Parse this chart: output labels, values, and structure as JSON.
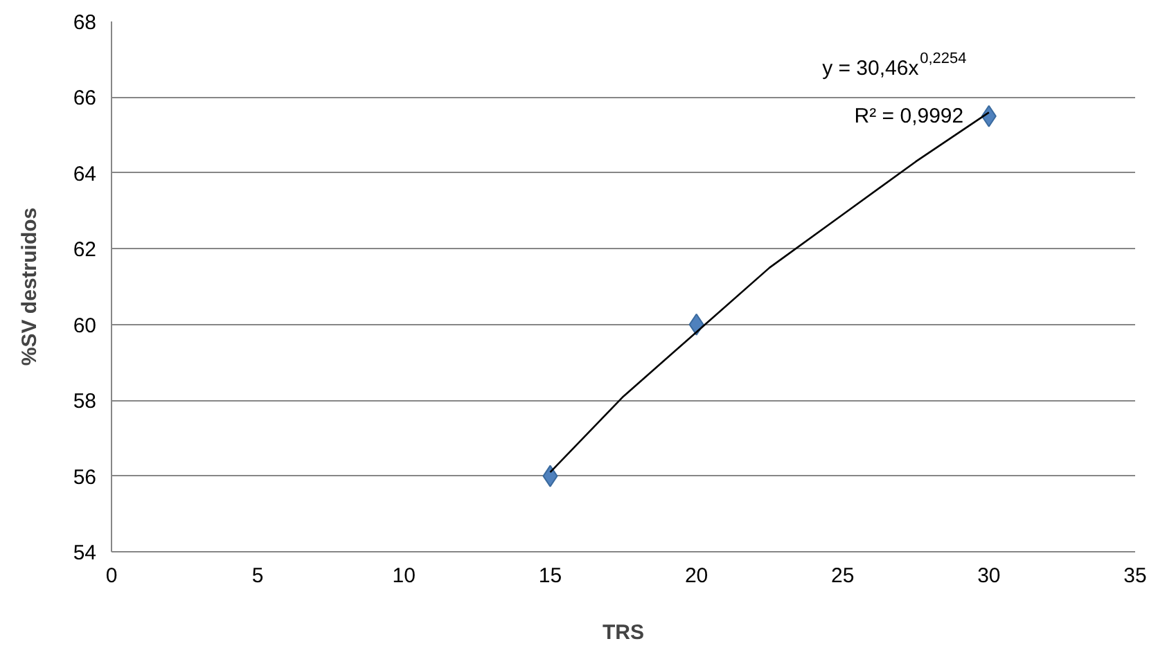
{
  "chart_data": {
    "type": "scatter",
    "xlabel": "TRS",
    "ylabel": "%SV destruidos",
    "annotations": [
      "y = 30,46x$^{0,2254}$",
      "R² = 0,9992"
    ],
    "series": [
      {
        "x": [
          15,
          20,
          30
        ],
        "values": [
          56,
          60,
          65.5
        ],
        "color": "#4f81bd",
        "marker": "diamond"
      },
      {
        "type": "line",
        "x": [
          15,
          17.5,
          20,
          22.5,
          25,
          27.5,
          30
        ],
        "values": [
          56.1,
          58.1,
          59.8,
          61.5,
          62.9,
          64.3,
          65.6
        ],
        "color": "#000000",
        "marker": "none",
        "line_style": "solid"
      }
    ],
    "xlim": [
      0,
      35
    ],
    "xticks": [
      0,
      5,
      10,
      15,
      20,
      25,
      30,
      35
    ],
    "ylim": [
      54,
      68
    ],
    "yticks": [
      54,
      56,
      58,
      60,
      62,
      64,
      66,
      68
    ],
    "grid": "y"
  }
}
